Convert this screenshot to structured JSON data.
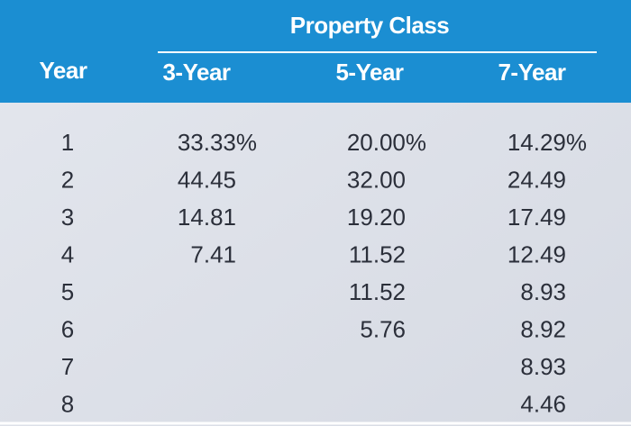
{
  "table": {
    "title": "Property Class",
    "year_header": "Year",
    "years": [
      "1",
      "2",
      "3",
      "4",
      "5",
      "6",
      "7",
      "8"
    ],
    "columns": [
      {
        "header": "3-Year",
        "values": [
          "33.33%",
          "44.45",
          "14.81",
          "7.41"
        ]
      },
      {
        "header": "5-Year",
        "values": [
          "20.00%",
          "32.00",
          "19.20",
          "11.52",
          "11.52",
          "5.76"
        ]
      },
      {
        "header": "7-Year",
        "values": [
          "14.29%",
          "24.49",
          "17.49",
          "12.49",
          "8.93",
          "8.92",
          "8.93",
          "4.46"
        ]
      }
    ]
  }
}
